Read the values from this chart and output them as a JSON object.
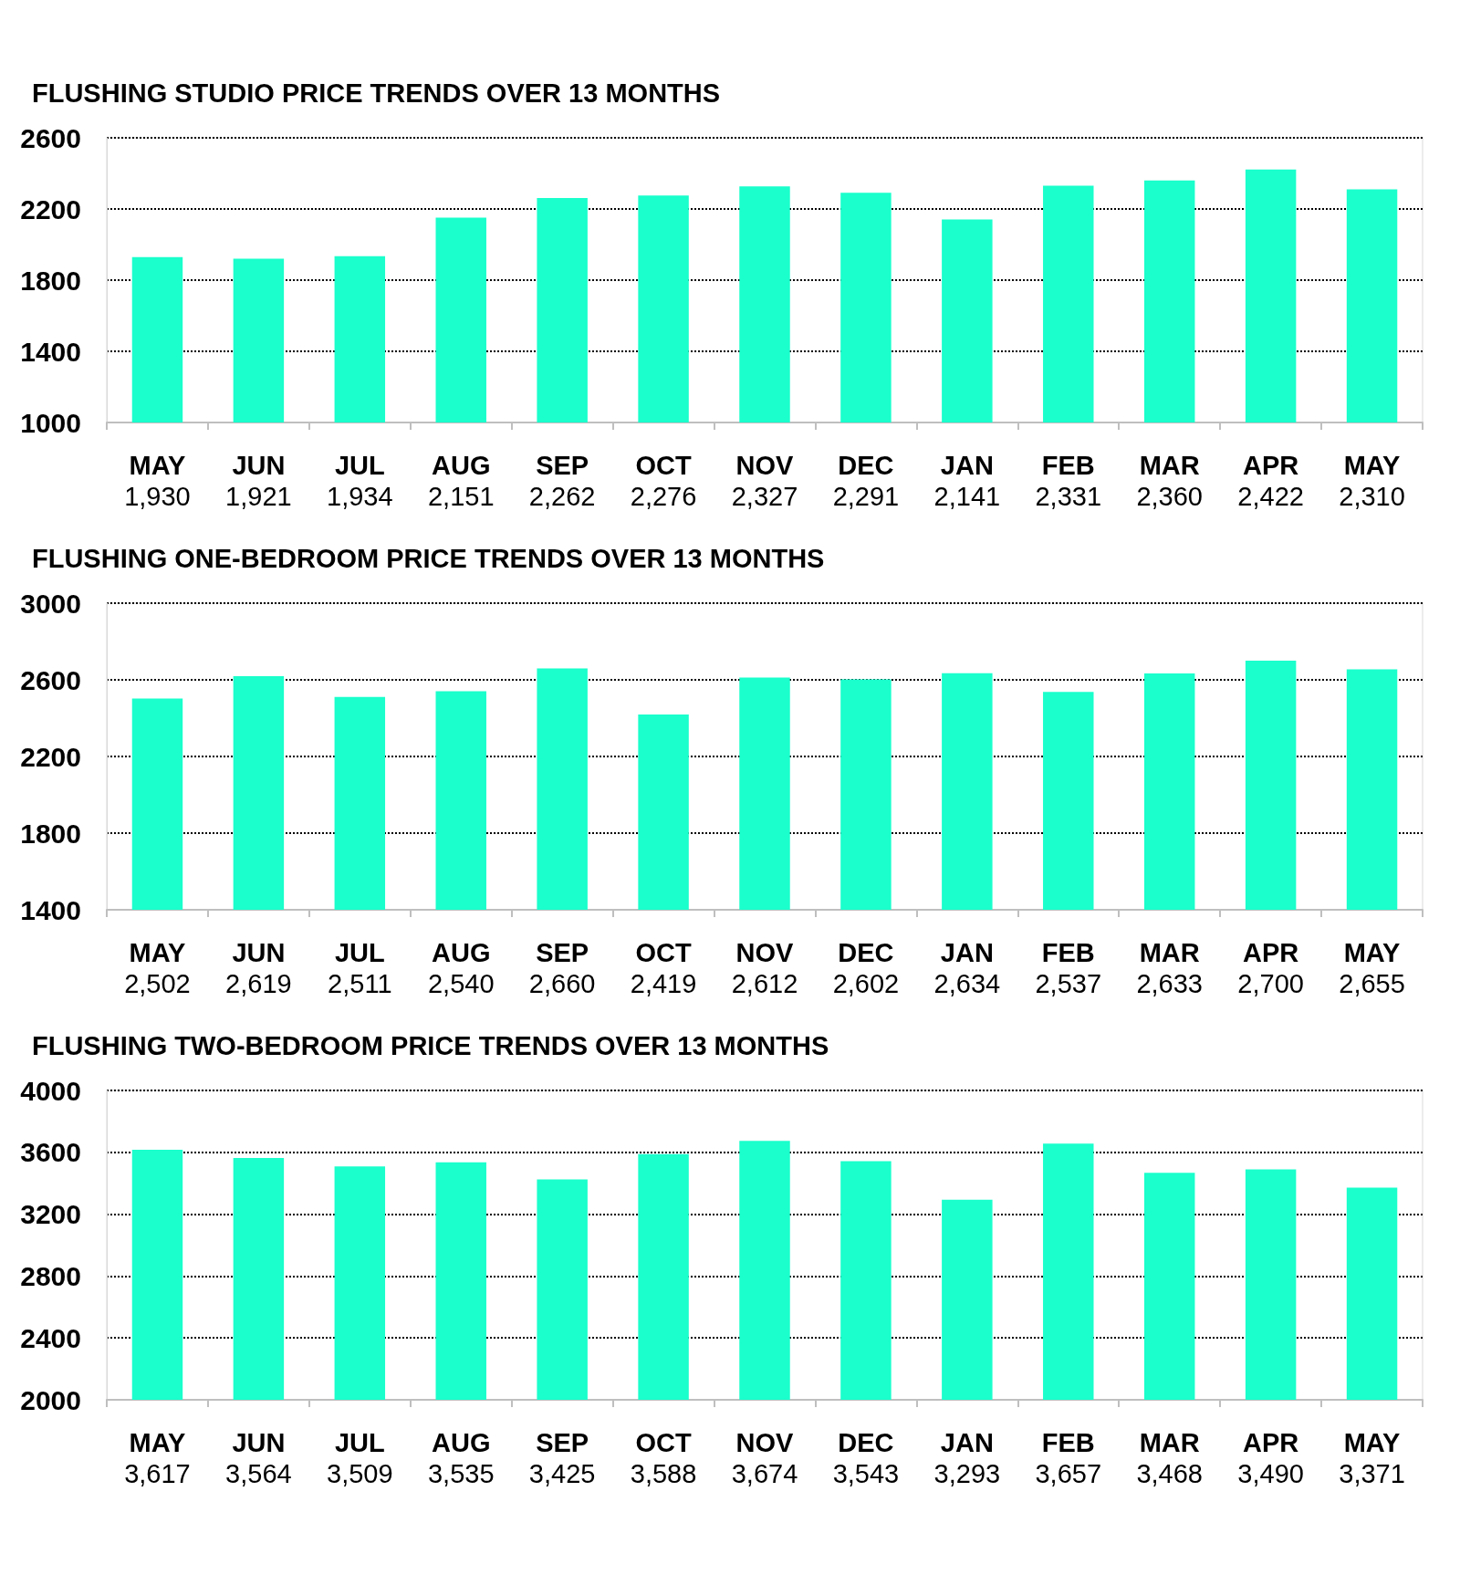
{
  "chart_data": [
    {
      "type": "bar",
      "title": "FLUSHING STUDIO PRICE TRENDS OVER 13 MONTHS",
      "categories": [
        "MAY",
        "JUN",
        "JUL",
        "AUG",
        "SEP",
        "OCT",
        "NOV",
        "DEC",
        "JAN",
        "FEB",
        "MAR",
        "APR",
        "MAY"
      ],
      "values": [
        1930,
        1921,
        1934,
        2151,
        2262,
        2276,
        2327,
        2291,
        2141,
        2331,
        2360,
        2422,
        2310
      ],
      "value_labels": [
        "1,930",
        "1,921",
        "1,934",
        "2,151",
        "2,262",
        "2,276",
        "2,327",
        "2,291",
        "2,141",
        "2,331",
        "2,360",
        "2,422",
        "2,310"
      ],
      "color": "#1affcc",
      "ylim": [
        1000,
        2600
      ],
      "yticks": [
        1000,
        1400,
        1800,
        2200,
        2600
      ],
      "grid": "y"
    },
    {
      "type": "bar",
      "title": "FLUSHING ONE-BEDROOM PRICE TRENDS OVER 13 MONTHS",
      "categories": [
        "MAY",
        "JUN",
        "JUL",
        "AUG",
        "SEP",
        "OCT",
        "NOV",
        "DEC",
        "JAN",
        "FEB",
        "MAR",
        "APR",
        "MAY"
      ],
      "values": [
        2502,
        2619,
        2511,
        2540,
        2660,
        2419,
        2612,
        2602,
        2634,
        2537,
        2633,
        2700,
        2655
      ],
      "value_labels": [
        "2,502",
        "2,619",
        "2,511",
        "2,540",
        "2,660",
        "2,419",
        "2,612",
        "2,602",
        "2,634",
        "2,537",
        "2,633",
        "2,700",
        "2,655"
      ],
      "color": "#1affcc",
      "ylim": [
        1400,
        3000
      ],
      "yticks": [
        1400,
        1800,
        2200,
        2600,
        3000
      ],
      "grid": "y"
    },
    {
      "type": "bar",
      "title": "FLUSHING TWO-BEDROOM PRICE TRENDS OVER 13 MONTHS",
      "categories": [
        "MAY",
        "JUN",
        "JUL",
        "AUG",
        "SEP",
        "OCT",
        "NOV",
        "DEC",
        "JAN",
        "FEB",
        "MAR",
        "APR",
        "MAY"
      ],
      "values": [
        3617,
        3564,
        3509,
        3535,
        3425,
        3588,
        3674,
        3543,
        3293,
        3657,
        3468,
        3490,
        3371
      ],
      "value_labels": [
        "3,617",
        "3,564",
        "3,509",
        "3,535",
        "3,425",
        "3,588",
        "3,674",
        "3,543",
        "3,293",
        "3,657",
        "3,468",
        "3,490",
        "3,371"
      ],
      "color": "#1affcc",
      "ylim": [
        2000,
        4000
      ],
      "yticks": [
        2000,
        2400,
        2800,
        3200,
        3600,
        4000
      ],
      "grid": "y"
    }
  ]
}
